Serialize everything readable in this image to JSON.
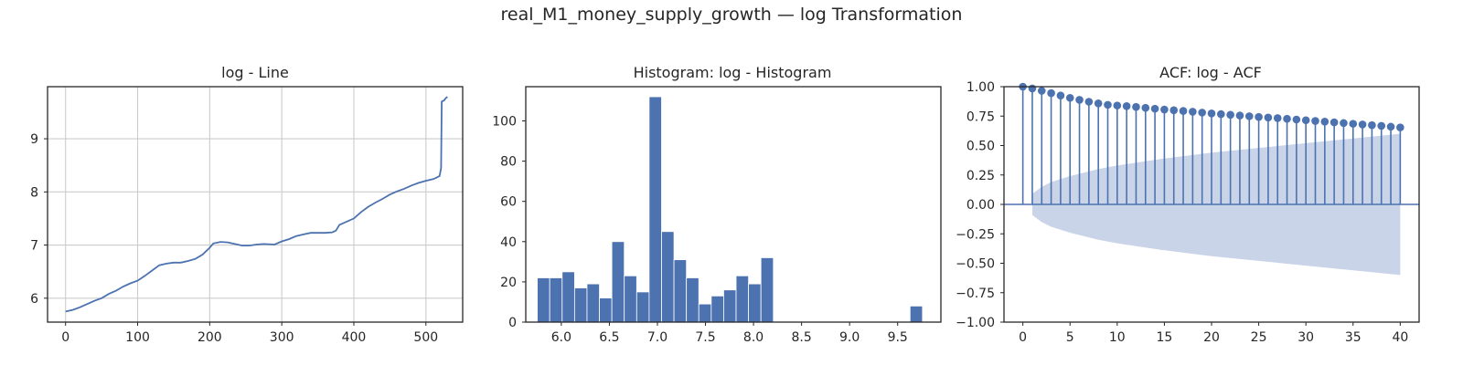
{
  "figure": {
    "title": "real_M1_money_supply_growth — log Transformation"
  },
  "colors": {
    "series": "#4c72b0",
    "ci_band": "#c9d4e8",
    "frame": "#262626",
    "grid": "#cccccc",
    "background": "#ffffff"
  },
  "chart_data": [
    {
      "type": "line",
      "title": "log - Line",
      "xlabel": "",
      "ylabel": "",
      "xlim": [
        -25,
        551
      ],
      "ylim": [
        5.55,
        9.98
      ],
      "xticks": [
        0,
        100,
        200,
        300,
        400,
        500
      ],
      "yticks": [
        6,
        7,
        8,
        9
      ],
      "grid": true,
      "points": [
        [
          0,
          5.75
        ],
        [
          10,
          5.78
        ],
        [
          20,
          5.83
        ],
        [
          30,
          5.89
        ],
        [
          40,
          5.95
        ],
        [
          50,
          6.0
        ],
        [
          60,
          6.08
        ],
        [
          70,
          6.14
        ],
        [
          80,
          6.22
        ],
        [
          90,
          6.28
        ],
        [
          100,
          6.33
        ],
        [
          110,
          6.42
        ],
        [
          120,
          6.52
        ],
        [
          130,
          6.62
        ],
        [
          140,
          6.65
        ],
        [
          150,
          6.67
        ],
        [
          160,
          6.67
        ],
        [
          170,
          6.7
        ],
        [
          180,
          6.74
        ],
        [
          190,
          6.82
        ],
        [
          200,
          6.95
        ],
        [
          205,
          7.03
        ],
        [
          215,
          7.06
        ],
        [
          225,
          7.05
        ],
        [
          235,
          7.02
        ],
        [
          245,
          6.99
        ],
        [
          255,
          6.99
        ],
        [
          265,
          7.01
        ],
        [
          275,
          7.02
        ],
        [
          290,
          7.01
        ],
        [
          300,
          7.07
        ],
        [
          310,
          7.11
        ],
        [
          320,
          7.17
        ],
        [
          330,
          7.2
        ],
        [
          340,
          7.23
        ],
        [
          350,
          7.23
        ],
        [
          360,
          7.23
        ],
        [
          370,
          7.24
        ],
        [
          375,
          7.27
        ],
        [
          380,
          7.38
        ],
        [
          390,
          7.44
        ],
        [
          400,
          7.5
        ],
        [
          410,
          7.62
        ],
        [
          420,
          7.72
        ],
        [
          430,
          7.8
        ],
        [
          440,
          7.87
        ],
        [
          450,
          7.95
        ],
        [
          460,
          8.01
        ],
        [
          470,
          8.06
        ],
        [
          480,
          8.12
        ],
        [
          490,
          8.17
        ],
        [
          500,
          8.21
        ],
        [
          510,
          8.24
        ],
        [
          515,
          8.27
        ],
        [
          519,
          8.3
        ],
        [
          521,
          8.45
        ],
        [
          522,
          9.7
        ],
        [
          525,
          9.72
        ],
        [
          528,
          9.77
        ],
        [
          530,
          9.79
        ]
      ]
    },
    {
      "type": "bar",
      "title": "Histogram: log - Histogram",
      "xlabel": "",
      "ylabel": "",
      "xlim": [
        5.63,
        9.95
      ],
      "ylim": [
        0,
        117
      ],
      "xticks": [
        6.0,
        6.5,
        7.0,
        7.5,
        8.0,
        8.5,
        9.0,
        9.5
      ],
      "yticks": [
        0,
        20,
        40,
        60,
        80,
        100
      ],
      "bin_start": 5.75,
      "bin_width": 0.1293,
      "counts": [
        22,
        22,
        25,
        17,
        19,
        12,
        40,
        23,
        15,
        112,
        45,
        31,
        22,
        9,
        13,
        16,
        23,
        19,
        32,
        0,
        0,
        0,
        0,
        0,
        0,
        0,
        0,
        0,
        0,
        0,
        8
      ]
    },
    {
      "type": "stem",
      "title": "ACF: log - ACF",
      "xlabel": "",
      "ylabel": "",
      "xlim": [
        -2,
        42
      ],
      "ylim": [
        -1.0,
        1.0
      ],
      "xticks": [
        0,
        5,
        10,
        15,
        20,
        25,
        30,
        35,
        40
      ],
      "yticks": [
        -1.0,
        -0.75,
        -0.5,
        -0.25,
        0.0,
        0.25,
        0.5,
        0.75,
        1.0
      ],
      "lags": [
        0,
        1,
        2,
        3,
        4,
        5,
        6,
        7,
        8,
        9,
        10,
        11,
        12,
        13,
        14,
        15,
        16,
        17,
        18,
        19,
        20,
        21,
        22,
        23,
        24,
        25,
        26,
        27,
        28,
        29,
        30,
        31,
        32,
        33,
        34,
        35,
        36,
        37,
        38,
        39,
        40
      ],
      "acf": [
        1.0,
        0.985,
        0.965,
        0.945,
        0.925,
        0.905,
        0.888,
        0.872,
        0.858,
        0.846,
        0.84,
        0.835,
        0.828,
        0.82,
        0.813,
        0.806,
        0.8,
        0.794,
        0.787,
        0.78,
        0.773,
        0.767,
        0.761,
        0.755,
        0.749,
        0.743,
        0.738,
        0.733,
        0.727,
        0.721,
        0.715,
        0.709,
        0.703,
        0.697,
        0.691,
        0.685,
        0.679,
        0.673,
        0.667,
        0.66,
        0.654
      ],
      "conf_band": [
        [
          1,
          0.09
        ],
        [
          2,
          0.15
        ],
        [
          3,
          0.19
        ],
        [
          5,
          0.24
        ],
        [
          8,
          0.3
        ],
        [
          10,
          0.33
        ],
        [
          15,
          0.39
        ],
        [
          20,
          0.44
        ],
        [
          25,
          0.48
        ],
        [
          30,
          0.52
        ],
        [
          35,
          0.56
        ],
        [
          40,
          0.6
        ]
      ]
    }
  ]
}
